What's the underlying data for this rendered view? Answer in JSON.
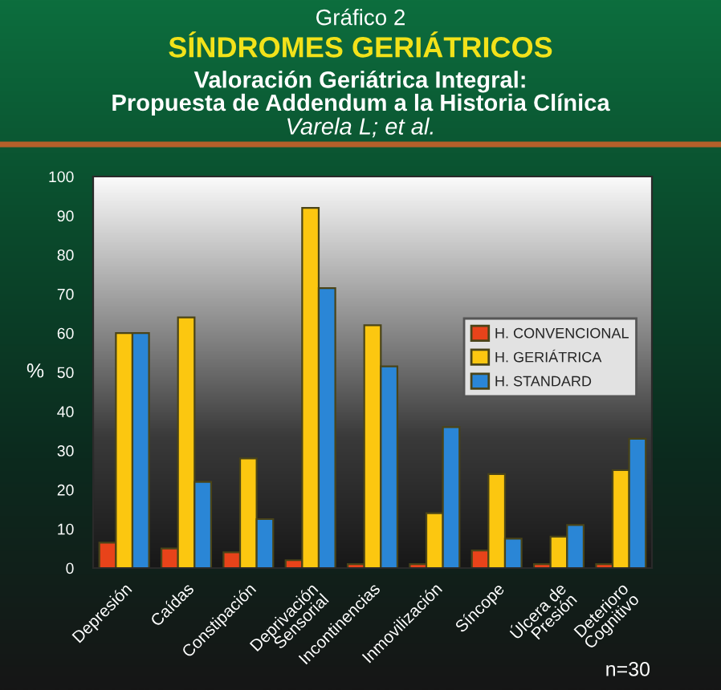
{
  "chart_data": {
    "type": "bar",
    "title": "SÍNDROMES GERIÁTRICOS",
    "subtitle": "Valoración Geriátrica Integral:\nPropuesta de Addendum a la Historia Clínica",
    "ylabel": "%",
    "annotations": [
      "Gráfico 2",
      "Varela L; et al.",
      "n=30"
    ],
    "categories": [
      "Depresión",
      "Caídas",
      "Constipación",
      "Deprivación\nSensorial",
      "Incontinencias",
      "Inmovilización",
      "Síncope",
      "Úlcera de\nPresión",
      "Deterioro\nCognitivo"
    ],
    "series": [
      {
        "name": "H. CONVENCIONAL",
        "color": "#e8431a",
        "values": [
          6.5,
          5,
          4,
          2,
          1,
          1,
          4.5,
          1,
          1
        ]
      },
      {
        "name": "H. GERIÁTRICA",
        "color": "#fcc710",
        "values": [
          60,
          64,
          28,
          92,
          62,
          14,
          24,
          8,
          25
        ]
      },
      {
        "name": "H. STANDARD",
        "color": "#2a86d6",
        "values": [
          60,
          22,
          12.5,
          71.5,
          51.5,
          36,
          7.5,
          11,
          33
        ]
      }
    ],
    "ylim": [
      0,
      100
    ],
    "yticks": [
      0,
      10,
      20,
      30,
      40,
      50,
      60,
      70,
      80,
      90,
      100
    ],
    "legend": "right"
  }
}
